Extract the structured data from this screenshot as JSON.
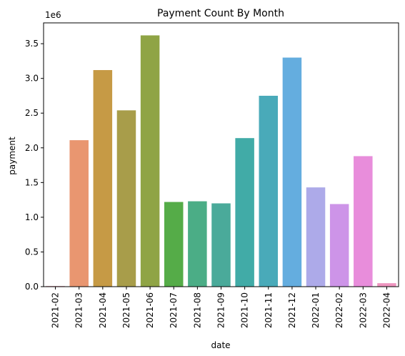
{
  "chart_data": {
    "type": "bar",
    "title": "Payment Count By Month",
    "xlabel": "date",
    "ylabel": "payment",
    "offset_label": "1e6",
    "categories": [
      "2021-02",
      "2021-03",
      "2021-04",
      "2021-05",
      "2021-06",
      "2021-07",
      "2021-08",
      "2021-09",
      "2021-10",
      "2021-11",
      "2021-12",
      "2022-01",
      "2022-02",
      "2022-03",
      "2022-04"
    ],
    "values": [
      10000,
      2110000,
      3120000,
      2540000,
      3620000,
      1220000,
      1230000,
      1200000,
      2140000,
      2750000,
      3300000,
      1430000,
      1190000,
      1880000,
      50000
    ],
    "colors": [
      "#e8aeb9",
      "#e99670",
      "#c69a45",
      "#a89d4a",
      "#8fa445",
      "#55ac48",
      "#4bad86",
      "#4aaa9a",
      "#41aba7",
      "#49aab9",
      "#64addf",
      "#adaae9",
      "#cd94e8",
      "#e88ddb",
      "#ee95bf"
    ],
    "yticks": [
      0.0,
      0.5,
      1.0,
      1.5,
      2.0,
      2.5,
      3.0,
      3.5
    ],
    "ylim": [
      0,
      3800000
    ],
    "grid": false,
    "legend": "none"
  }
}
